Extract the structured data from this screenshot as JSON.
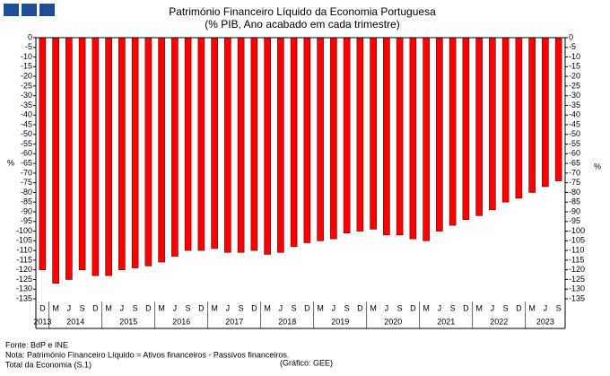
{
  "chart_data": {
    "type": "bar",
    "title": "Património Financeiro Líquido da Economia Portuguesa",
    "subtitle": "(% PIB, Ano acabado em cada trimestre)",
    "y_label": "%",
    "categories": [
      "D",
      "M",
      "J",
      "S",
      "D",
      "M",
      "J",
      "S",
      "D",
      "M",
      "J",
      "S",
      "D",
      "M",
      "J",
      "S",
      "D",
      "M",
      "J",
      "S",
      "D",
      "M",
      "J",
      "S",
      "D",
      "M",
      "J",
      "S",
      "D",
      "M",
      "J",
      "S",
      "D",
      "M",
      "J",
      "S",
      "D",
      "M",
      "J",
      "S"
    ],
    "years": [
      "2013",
      "2014",
      "2015",
      "2016",
      "2017",
      "2018",
      "2019",
      "2020",
      "2021",
      "2022",
      "2023"
    ],
    "values": [
      -120,
      -127,
      -125,
      -120,
      -123,
      -123,
      -120,
      -119,
      -118,
      -116,
      -113,
      -110,
      -110,
      -109,
      -111,
      -111,
      -110,
      -112,
      -111,
      -108,
      -106,
      -105,
      -104,
      -101,
      -100,
      -99,
      -102,
      -102,
      -104,
      -105,
      -100,
      -97,
      -94,
      -92,
      -89,
      -85,
      -83,
      -80,
      -77,
      -74
    ],
    "color": "#ff0000",
    "ylim": [
      0,
      -135
    ],
    "yticks": [
      0,
      -5,
      -10,
      -15,
      -20,
      -25,
      -30,
      -35,
      -40,
      -45,
      -50,
      -55,
      -60,
      -65,
      -70,
      -75,
      -80,
      -85,
      -90,
      -95,
      -100,
      -105,
      -110,
      -115,
      -120,
      -125,
      -130,
      -135
    ],
    "notes": [
      "Fonte: BdP e INE",
      "Nota: Património Financeiro Líquido = Ativos financeiros - Passivos financeiros.",
      "Total da Economia (S.1)"
    ],
    "credit": "(Gráfico: GEE)"
  }
}
